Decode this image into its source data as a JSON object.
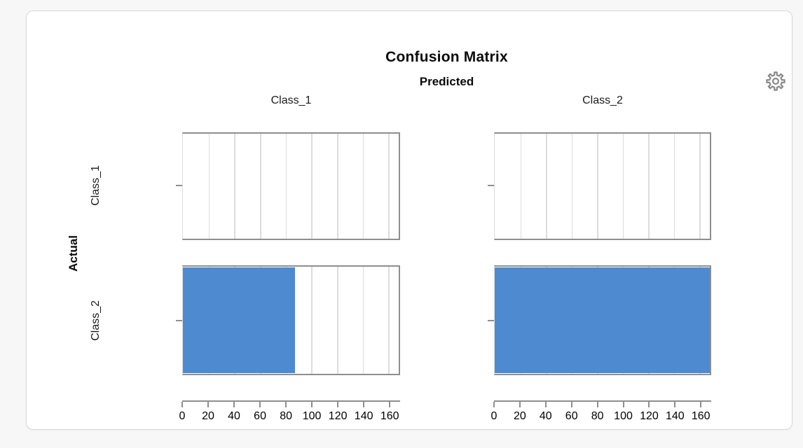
{
  "chart_data": {
    "type": "bar",
    "orientation": "horizontal",
    "layout": "trellis-2x2-confusion-matrix",
    "title": "Confusion Matrix",
    "column_header": "Predicted",
    "row_header": "Actual",
    "columns": [
      "Class_1",
      "Class_2"
    ],
    "rows": [
      "Class_1",
      "Class_2"
    ],
    "values": [
      [
        0,
        0
      ],
      [
        87,
        168
      ]
    ],
    "xlim": [
      0,
      168
    ],
    "x_ticks": [
      0,
      20,
      40,
      60,
      80,
      100,
      120,
      140,
      160
    ],
    "bar_color": "#4e8ad0",
    "grid": true,
    "legend": "none"
  },
  "icons": {
    "settings": "gear-icon"
  },
  "colors": {
    "bar": "#4e8ad0",
    "panel_border": "#8e8e8e",
    "gridline": "#dcdcdc",
    "icon_stroke": "#8a8a8a",
    "card_background": "#ffffff",
    "page_background": "#f7f7f8"
  }
}
